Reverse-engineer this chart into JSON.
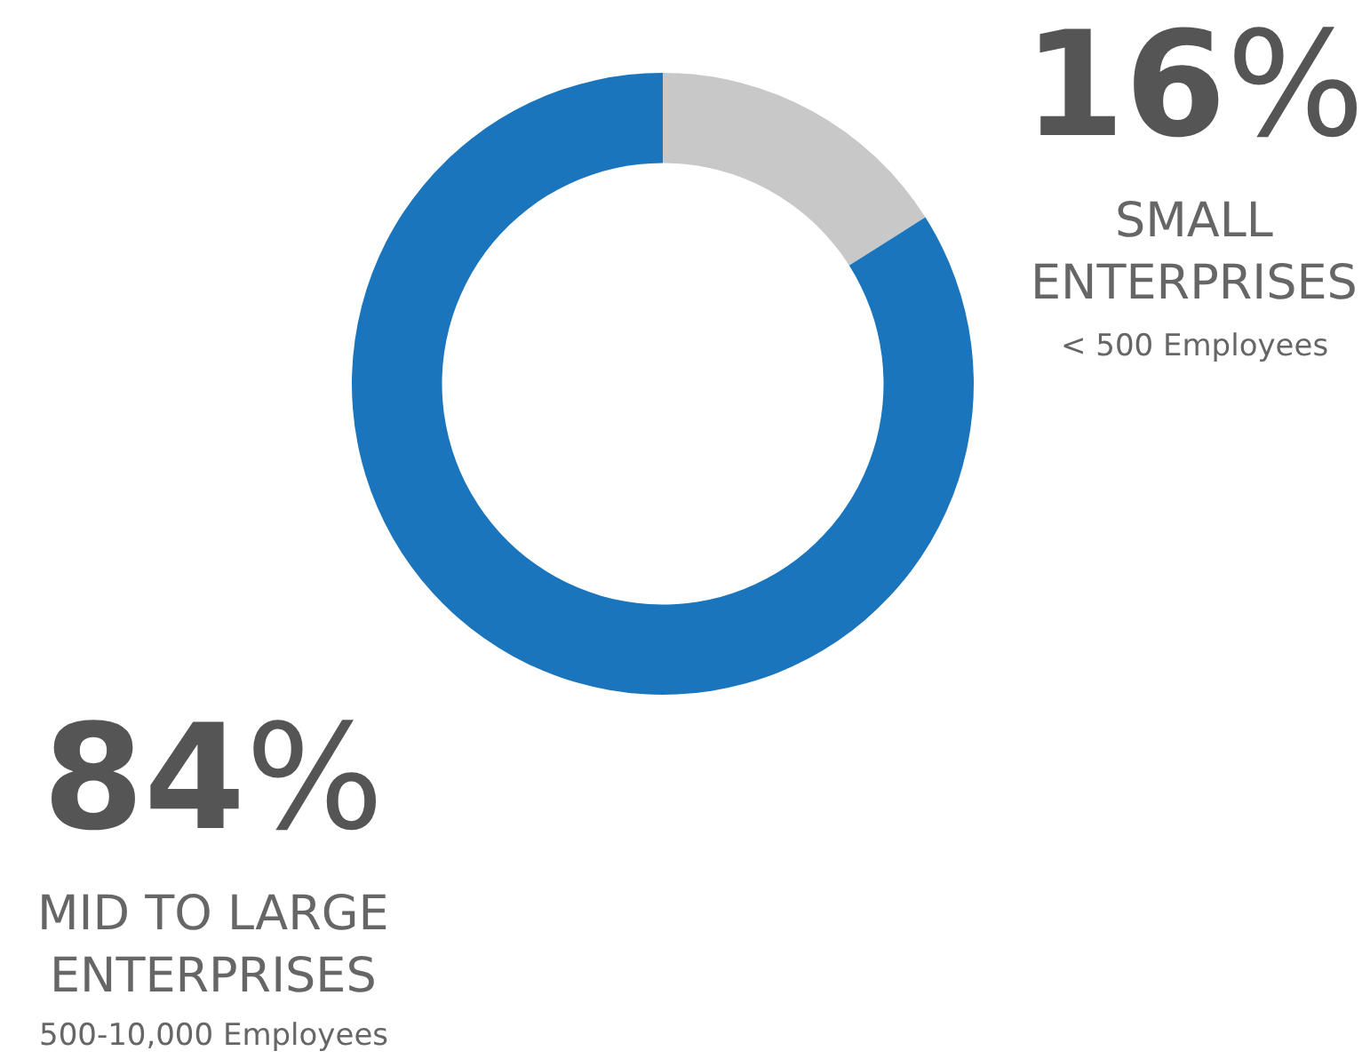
{
  "chart_data": {
    "type": "donut",
    "categories": [
      "SMALL\nENTERPRISES",
      "MID TO LARGE\nENTERPRISES"
    ],
    "values": [
      16,
      84
    ],
    "colors": [
      "#c8c8c8",
      "#1a75bc"
    ],
    "value_labels": [
      "16%",
      "84%"
    ],
    "annotations": [
      "< 500 Employees",
      "500-10,000 Employees"
    ],
    "legend": false
  }
}
